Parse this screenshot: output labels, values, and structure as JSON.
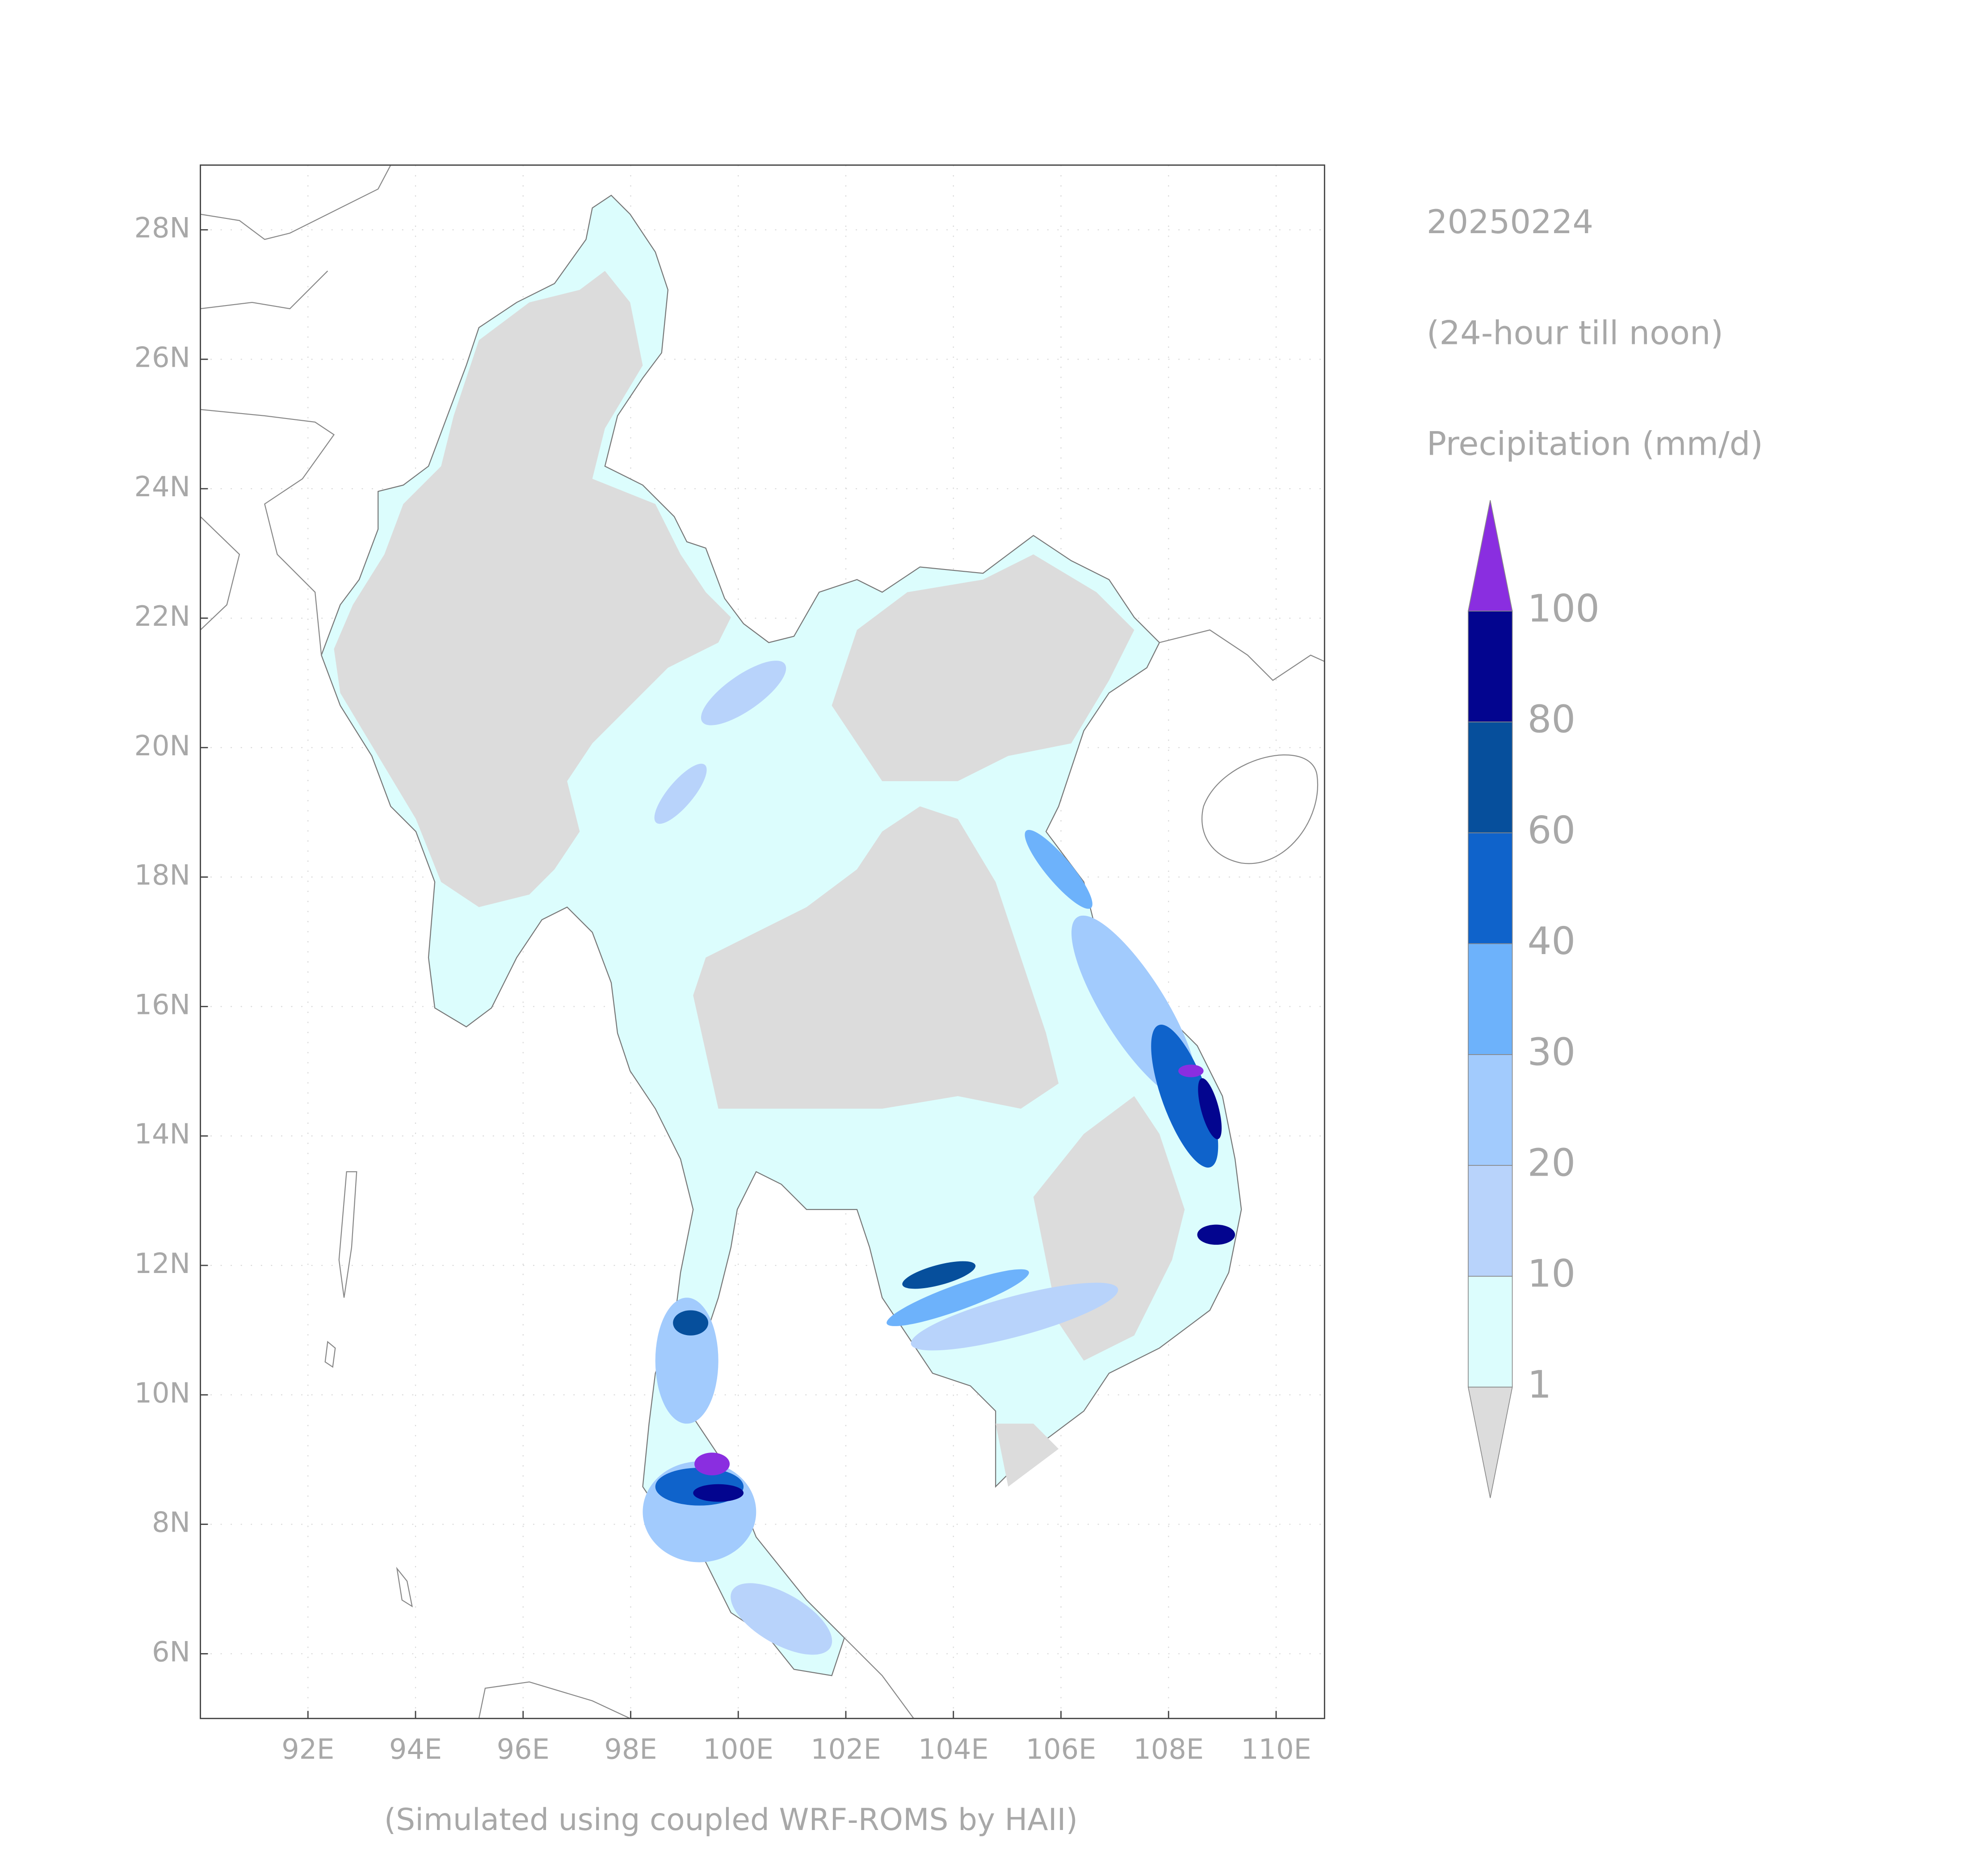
{
  "chart_data": {
    "type": "map",
    "title_lines": [
      "20250224",
      "(24-hour till noon)",
      "Precipitation (mm/d)"
    ],
    "footer": "(Simulated using coupled WRF-ROMS by HAII)",
    "xlim": [
      90,
      110.9
    ],
    "ylim": [
      5,
      29
    ],
    "xticks": [
      {
        "value": 92,
        "label": "92E"
      },
      {
        "value": 94,
        "label": "94E"
      },
      {
        "value": 96,
        "label": "96E"
      },
      {
        "value": 98,
        "label": "98E"
      },
      {
        "value": 100,
        "label": "100E"
      },
      {
        "value": 102,
        "label": "102E"
      },
      {
        "value": 104,
        "label": "104E"
      },
      {
        "value": 106,
        "label": "106E"
      },
      {
        "value": 108,
        "label": "108E"
      },
      {
        "value": 110,
        "label": "110E"
      }
    ],
    "yticks": [
      {
        "value": 6,
        "label": "6N"
      },
      {
        "value": 8,
        "label": "8N"
      },
      {
        "value": 10,
        "label": "10N"
      },
      {
        "value": 12,
        "label": "12N"
      },
      {
        "value": 14,
        "label": "14N"
      },
      {
        "value": 16,
        "label": "16N"
      },
      {
        "value": 18,
        "label": "18N"
      },
      {
        "value": 20,
        "label": "20N"
      },
      {
        "value": 22,
        "label": "22N"
      },
      {
        "value": 24,
        "label": "24N"
      },
      {
        "value": 26,
        "label": "26N"
      },
      {
        "value": 28,
        "label": "28N"
      }
    ],
    "grid": true,
    "colorbar": {
      "levels": [
        1,
        10,
        20,
        30,
        40,
        60,
        80,
        100
      ],
      "colors": [
        "#dcdcdc",
        "#dcfdfd",
        "#b8d3fb",
        "#a2cbfd",
        "#6db2fb",
        "#0f63cb",
        "#064f9c",
        "#03058f",
        "#8a2ee0"
      ],
      "extend": "both"
    }
  }
}
